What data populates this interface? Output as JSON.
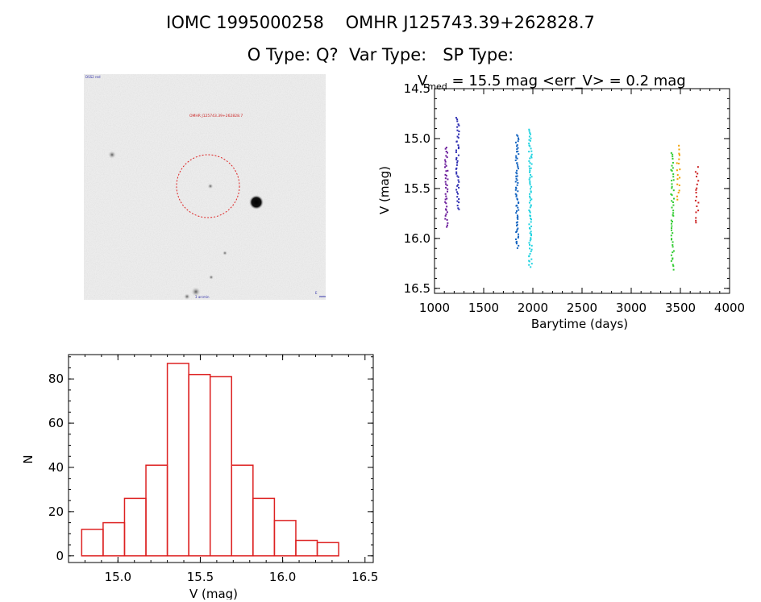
{
  "header": {
    "line1": "IOMC 1995000258    OMHR J125743.39+262828.7",
    "line2": "O Type: Q?  Var Type:   SP Type:"
  },
  "skyimage": {
    "corner_label": "DSS2 red",
    "target_label": "OMHR J125743.39+262828.7",
    "scale_label": "3 arcmin",
    "north_label": "N",
    "east_label": "E",
    "color_circle": "#dd2222"
  },
  "chart_data": [
    {
      "type": "scatter",
      "title_prefix": "V",
      "title_sub": "med",
      "title_rest": " = 15.5 mag <err_V> = 0.2 mag",
      "xlabel": "Barytime (days)",
      "ylabel": "V (mag)",
      "xlim": [
        1000,
        4000
      ],
      "ylim": [
        16.55,
        14.5
      ],
      "xticks": [
        1000,
        1500,
        2000,
        2500,
        3000,
        3500,
        4000
      ],
      "yticks": [
        14.5,
        15.0,
        15.5,
        16.0,
        16.5
      ],
      "series": [
        {
          "color": "#6a1b9a",
          "x": 1120,
          "ymin": 15.08,
          "ymax": 15.89,
          "n": 40
        },
        {
          "color": "#2a2ab0",
          "x": 1235,
          "ymin": 14.78,
          "ymax": 15.72,
          "n": 45
        },
        {
          "color": "#1565c0",
          "x": 1840,
          "ymin": 14.95,
          "ymax": 16.1,
          "n": 70
        },
        {
          "color": "#22d3e0",
          "x": 1975,
          "ymin": 14.9,
          "ymax": 16.3,
          "n": 80
        },
        {
          "color": "#33cc33",
          "x": 3420,
          "ymin": 15.13,
          "ymax": 16.32,
          "n": 50
        },
        {
          "color": "#f0a000",
          "x": 3480,
          "ymin": 15.06,
          "ymax": 15.62,
          "n": 18
        },
        {
          "color": "#cc2222",
          "x": 3670,
          "ymin": 15.28,
          "ymax": 15.86,
          "n": 18
        }
      ]
    },
    {
      "type": "bar",
      "xlabel": "V (mag)",
      "ylabel": "N",
      "xlim": [
        14.7,
        16.55
      ],
      "ylim": [
        -3,
        91
      ],
      "xticks": [
        15.0,
        15.5,
        16.0,
        16.5
      ],
      "yticks": [
        0,
        20,
        40,
        60,
        80
      ],
      "bin_width": 0.13,
      "bin_starts": [
        14.78,
        14.91,
        15.04,
        15.17,
        15.3,
        15.43,
        15.56,
        15.69,
        15.82,
        15.95,
        16.08,
        16.21
      ],
      "values": [
        12,
        15,
        26,
        41,
        87,
        82,
        81,
        41,
        26,
        16,
        7,
        6
      ],
      "color": "#dd2222"
    }
  ]
}
